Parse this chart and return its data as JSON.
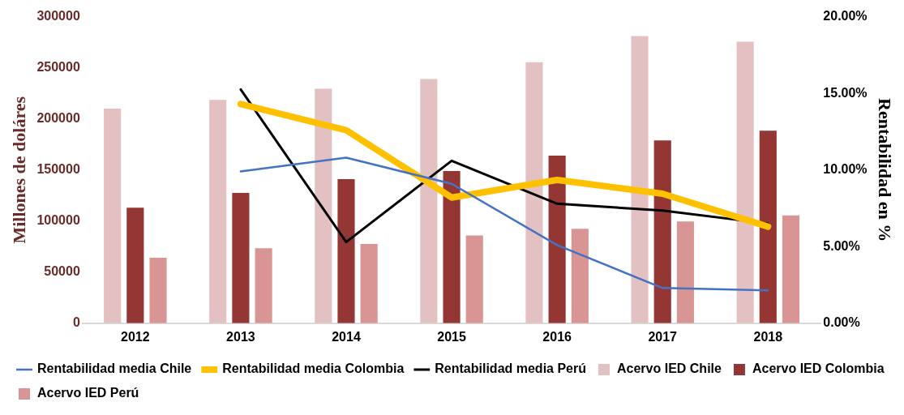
{
  "chart_data": {
    "type": "bar",
    "ylabel": "Millones de doláres",
    "y2label": "Rentabilidad en %",
    "categories": [
      "2012",
      "2013",
      "2014",
      "2015",
      "2016",
      "2017",
      "2018"
    ],
    "series": [
      {
        "name": "Acervo IED Chile",
        "color": "#e3c1c3",
        "values": [
          210000,
          218500,
          229500,
          239000,
          255500,
          281000,
          275500
        ]
      },
      {
        "name": "Acervo IED Colombia",
        "color": "#943634",
        "values": [
          113000,
          127500,
          141000,
          149000,
          164000,
          179000,
          188500
        ]
      },
      {
        "name": "Acervo IED Perú",
        "color": "#d99594",
        "values": [
          64000,
          73500,
          77500,
          86000,
          92500,
          99500,
          105500
        ]
      },
      {
        "name": "Rentabilidad media Chile",
        "type": "line",
        "axis": "y2",
        "color": "#4472c4",
        "values": [
          null,
          9.9,
          10.8,
          9.1,
          5.1,
          2.3,
          2.15
        ]
      },
      {
        "name": "Rentabilidad media Colombia",
        "type": "line",
        "axis": "y2",
        "color": "#ffc000",
        "values": [
          null,
          14.3,
          12.6,
          8.2,
          9.35,
          8.45,
          6.3
        ]
      },
      {
        "name": "Rentabilidad media Perú",
        "type": "line",
        "axis": "y2",
        "color": "#000000",
        "values": [
          null,
          15.25,
          5.3,
          10.6,
          7.8,
          7.35,
          6.5
        ]
      }
    ],
    "ylim": [
      0,
      300000
    ],
    "yticks": [
      0,
      50000,
      100000,
      150000,
      200000,
      250000,
      300000
    ],
    "y2lim": [
      0,
      20
    ],
    "y2ticks": [
      {
        "value": 0,
        "label": "0.00%"
      },
      {
        "value": 5,
        "label": "5.00%"
      },
      {
        "value": 10,
        "label": "10.00%"
      },
      {
        "value": 15,
        "label": "15.00%"
      },
      {
        "value": 20,
        "label": "20.00%"
      }
    ],
    "grid": false,
    "legend": "bottom",
    "marker": "none",
    "line_style": "solid"
  }
}
